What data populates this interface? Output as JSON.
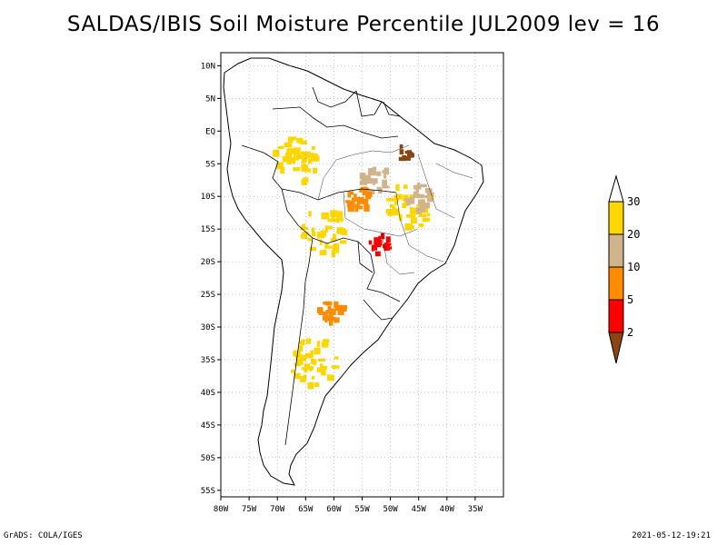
{
  "title": "SALDAS/IBIS Soil Moisture Percentile JUL2009 lev = 16",
  "footer": {
    "left": "GrADS: COLA/IGES",
    "right": "2021-05-12-19:21"
  },
  "map": {
    "lon_range": [
      -80,
      -30
    ],
    "lat_range": [
      -56,
      12
    ],
    "lon_ticks": [
      "80W",
      "75W",
      "70W",
      "65W",
      "60W",
      "55W",
      "50W",
      "45W",
      "40W",
      "35W"
    ],
    "lat_ticks": [
      "10N",
      "5N",
      "EQ",
      "5S",
      "10S",
      "15S",
      "20S",
      "25S",
      "30S",
      "35S",
      "40S",
      "45S",
      "50S",
      "55S"
    ]
  },
  "legend": {
    "labels": [
      "2",
      "5",
      "10",
      "20",
      "30"
    ],
    "colors": [
      "#8b4513",
      "#ff0000",
      "#ff8c00",
      "#d2b48c",
      "#ffd700",
      "#ffffff"
    ]
  },
  "chart_data": {
    "type": "heatmap",
    "title": "SALDAS/IBIS Soil Moisture Percentile JUL2009 lev = 16",
    "variable": "Soil Moisture Percentile",
    "period": "JUL2009",
    "level": 16,
    "x_axis": {
      "label": "",
      "range": [
        -80,
        -30
      ],
      "ticks": [
        -80,
        -75,
        -70,
        -65,
        -60,
        -55,
        -50,
        -45,
        -40,
        -35
      ]
    },
    "y_axis": {
      "label": "",
      "range": [
        -56,
        12
      ],
      "ticks": [
        10,
        5,
        0,
        -5,
        -10,
        -15,
        -20,
        -25,
        -30,
        -35,
        -40,
        -45,
        -50,
        -55
      ]
    },
    "color_scale": {
      "breaks": [
        2,
        5,
        10,
        20,
        30
      ],
      "colors": [
        "#8b4513",
        "#ff0000",
        "#ff8c00",
        "#d2b48c",
        "#ffd700",
        "#ffffff"
      ]
    },
    "regions": [
      {
        "lon": -47,
        "lat": -11,
        "category": "20-30"
      },
      {
        "lon": -53,
        "lat": -7,
        "category": "10-20"
      },
      {
        "lon": -56,
        "lat": -10,
        "category": "5-10"
      },
      {
        "lon": -52,
        "lat": -17,
        "category": "2-5"
      },
      {
        "lon": -61,
        "lat": -27,
        "category": "5-10"
      },
      {
        "lon": -64,
        "lat": -35,
        "category": "20-30"
      },
      {
        "lon": -45,
        "lat": -10,
        "category": "10-20"
      },
      {
        "lon": -62,
        "lat": -15,
        "category": "20-30"
      },
      {
        "lon": -67,
        "lat": -4,
        "category": "20-30"
      },
      {
        "lon": -48,
        "lat": -3,
        "category": "<2"
      }
    ],
    "grid": true
  }
}
